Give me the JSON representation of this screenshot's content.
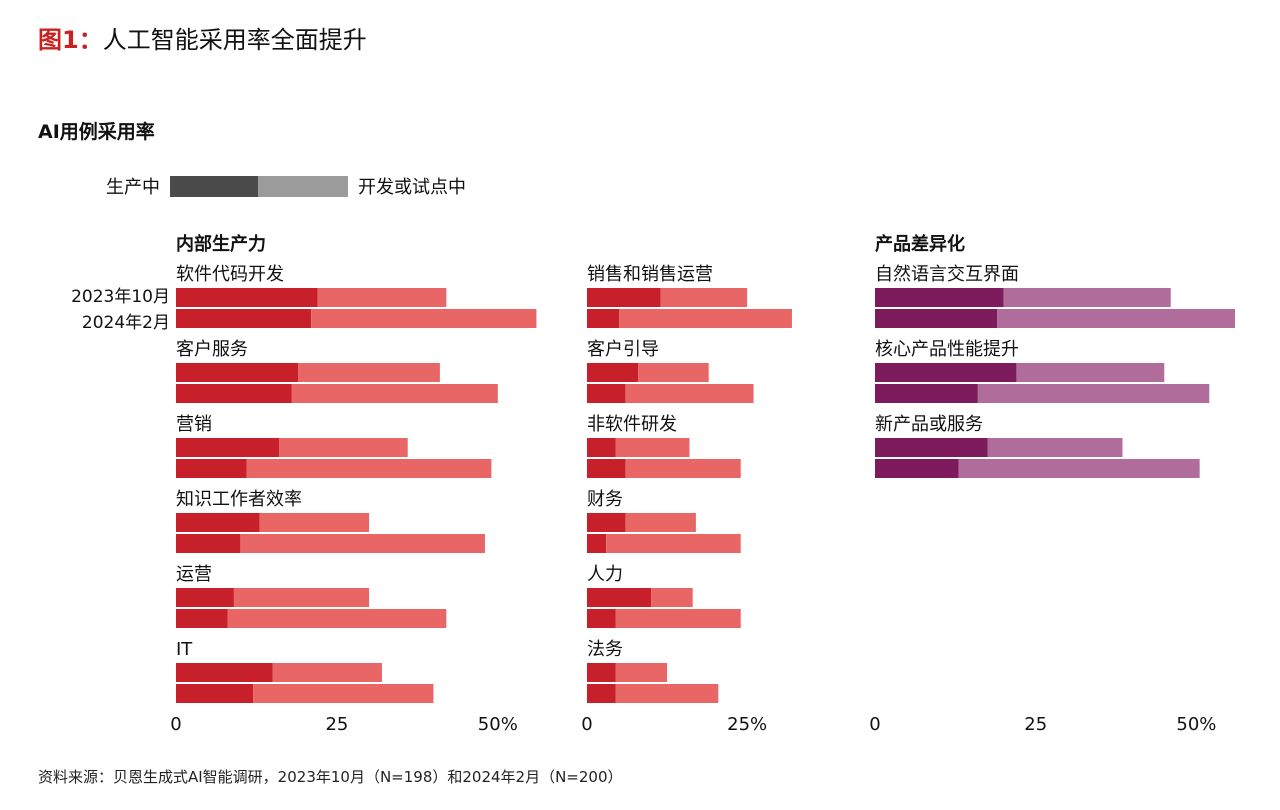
{
  "figure": {
    "number": "图1：",
    "title": "人工智能采用率全面提升"
  },
  "subtitle": "AI用例采用率",
  "legend": {
    "production": "生产中",
    "pilot": "开发或试点中"
  },
  "row_keys": [
    "2023年10月",
    "2024年2月"
  ],
  "source": "资料来源：贝恩生成式AI智能调研，2023年10月（N=198）和2024年2月（N=200）",
  "colors": {
    "red_production": "#c8202a",
    "red_pilot": "#e86766",
    "purple_production": "#7d1b5c",
    "purple_pilot": "#b06c9b",
    "legend_production": "#4b4b4b",
    "legend_pilot": "#9b9b9b"
  },
  "chart_data": [
    {
      "type": "bar",
      "stacked": true,
      "orientation": "horizontal",
      "title": "内部生产力",
      "series_names": [
        "生产中",
        "开发或试点中"
      ],
      "periods": [
        "2023年10月",
        "2024年2月"
      ],
      "xlim": [
        0,
        55
      ],
      "ticks": [
        "0",
        "25",
        "50%"
      ],
      "tick_values": [
        0,
        25,
        50
      ],
      "categories": [
        {
          "label": "软件代码开发",
          "production": [
            22,
            21
          ],
          "pilot": [
            20,
            35
          ]
        },
        {
          "label": "客户服务",
          "production": [
            19,
            18
          ],
          "pilot": [
            22,
            32
          ]
        },
        {
          "label": "营销",
          "production": [
            16,
            11
          ],
          "pilot": [
            20,
            38
          ]
        },
        {
          "label": "知识工作者效率",
          "production": [
            13,
            10
          ],
          "pilot": [
            17,
            38
          ]
        },
        {
          "label": "运营",
          "production": [
            9,
            8
          ],
          "pilot": [
            21,
            34
          ]
        },
        {
          "label": "IT",
          "production": [
            15,
            12
          ],
          "pilot": [
            17,
            28
          ]
        }
      ]
    },
    {
      "type": "bar",
      "stacked": true,
      "orientation": "horizontal",
      "title": "",
      "series_names": [
        "生产中",
        "开发或试点中"
      ],
      "periods": [
        "2023年10月",
        "2024年2月"
      ],
      "xlim": [
        0,
        37
      ],
      "ticks": [
        "0",
        "25%"
      ],
      "tick_values": [
        0,
        25
      ],
      "categories": [
        {
          "label": "销售和销售运营",
          "production": [
            11.5,
            5
          ],
          "pilot": [
            13.5,
            27
          ]
        },
        {
          "label": "客户引导",
          "production": [
            8,
            6
          ],
          "pilot": [
            11,
            20
          ]
        },
        {
          "label": "非软件研发",
          "production": [
            4.5,
            6
          ],
          "pilot": [
            11.5,
            18
          ]
        },
        {
          "label": "财务",
          "production": [
            6,
            3
          ],
          "pilot": [
            11,
            21
          ]
        },
        {
          "label": "人力",
          "production": [
            10,
            4.5
          ],
          "pilot": [
            6.5,
            19.5
          ]
        },
        {
          "label": "法务",
          "production": [
            4.5,
            4.5
          ],
          "pilot": [
            8,
            16
          ]
        }
      ]
    },
    {
      "type": "bar",
      "stacked": true,
      "orientation": "horizontal",
      "title": "产品差异化",
      "series_names": [
        "生产中",
        "开发或试点中"
      ],
      "periods": [
        "2023年10月",
        "2024年2月"
      ],
      "xlim": [
        0,
        56
      ],
      "ticks": [
        "0",
        "25",
        "50%"
      ],
      "tick_values": [
        0,
        25,
        50
      ],
      "categories": [
        {
          "label": "自然语言交互界面",
          "production": [
            20,
            19
          ],
          "pilot": [
            26,
            37
          ]
        },
        {
          "label": "核心产品性能提升",
          "production": [
            22,
            16
          ],
          "pilot": [
            23,
            36
          ]
        },
        {
          "label": "新产品或服务",
          "production": [
            17.5,
            13
          ],
          "pilot": [
            21,
            37.5
          ]
        }
      ]
    }
  ]
}
